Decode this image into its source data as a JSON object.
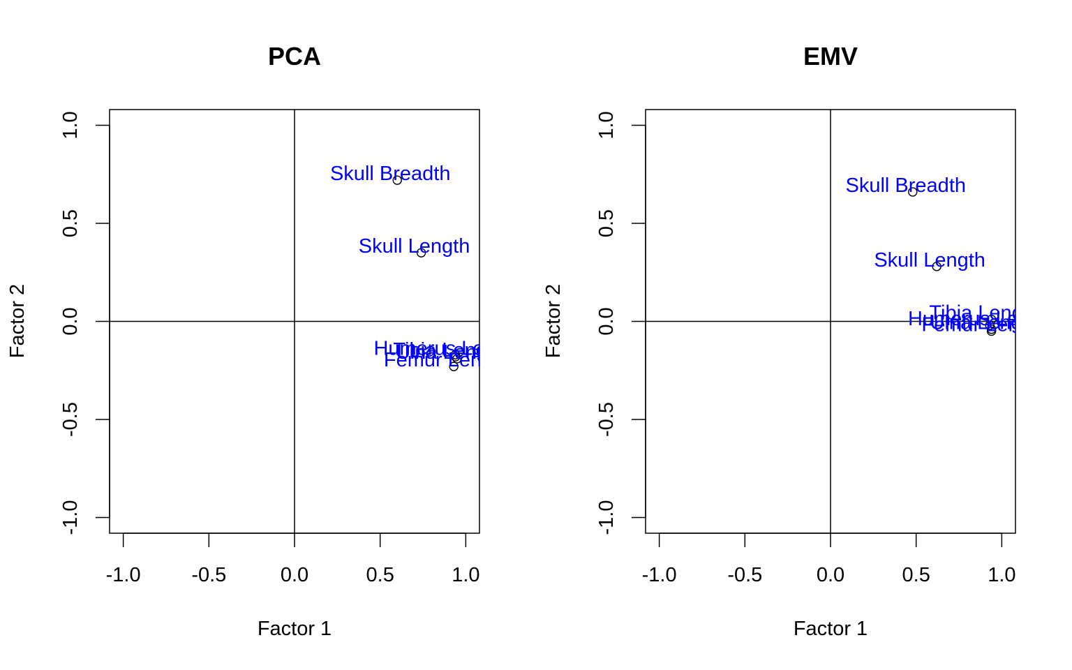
{
  "chart_data": [
    {
      "type": "scatter",
      "title": "PCA",
      "xlabel": "Factor 1",
      "ylabel": "Factor 2",
      "xlim": [
        -1.08,
        1.08
      ],
      "ylim": [
        -1.08,
        1.08
      ],
      "xticks": [
        -1.0,
        -0.5,
        0.0,
        0.5,
        1.0
      ],
      "yticks": [
        -1.0,
        -0.5,
        0.0,
        0.5,
        1.0
      ],
      "xtick_labels": [
        "-1.0",
        "-0.5",
        "0.0",
        "0.5",
        "1.0"
      ],
      "ytick_labels": [
        "-1.0",
        "-0.5",
        "0.0",
        "0.5",
        "1.0"
      ],
      "reference_lines": {
        "x": 0,
        "y": 0
      },
      "label_color": "#0000ff",
      "points": [
        {
          "label": "Skull Breadth",
          "x": 0.6,
          "y": 0.72
        },
        {
          "label": "Skull Length",
          "x": 0.74,
          "y": 0.35
        },
        {
          "label": "Humerus Length",
          "x": 0.94,
          "y": -0.17
        },
        {
          "label": "Ulna Length",
          "x": 0.95,
          "y": -0.19
        },
        {
          "label": "Tibia Length",
          "x": 0.94,
          "y": -0.18
        },
        {
          "label": "Femur Length",
          "x": 0.93,
          "y": -0.23
        }
      ]
    },
    {
      "type": "scatter",
      "title": "EMV",
      "xlabel": "Factor 1",
      "ylabel": "Factor 2",
      "xlim": [
        -1.08,
        1.08
      ],
      "ylim": [
        -1.08,
        1.08
      ],
      "xticks": [
        -1.0,
        -0.5,
        0.0,
        0.5,
        1.0
      ],
      "yticks": [
        -1.0,
        -0.5,
        0.0,
        0.5,
        1.0
      ],
      "xtick_labels": [
        "-1.0",
        "-0.5",
        "0.0",
        "0.5",
        "1.0"
      ],
      "ytick_labels": [
        "-1.0",
        "-0.5",
        "0.0",
        "0.5",
        "1.0"
      ],
      "reference_lines": {
        "x": 0,
        "y": 0
      },
      "label_color": "#0000ff",
      "points": [
        {
          "label": "Skull Breadth",
          "x": 0.48,
          "y": 0.66
        },
        {
          "label": "Skull Length",
          "x": 0.62,
          "y": 0.28
        },
        {
          "label": "Humerus Length",
          "x": 0.93,
          "y": -0.02
        },
        {
          "label": "Ulna Length",
          "x": 0.94,
          "y": -0.04
        },
        {
          "label": "Tibia Length",
          "x": 0.94,
          "y": 0.01
        },
        {
          "label": "Femur Length",
          "x": 0.94,
          "y": -0.05
        }
      ]
    }
  ]
}
